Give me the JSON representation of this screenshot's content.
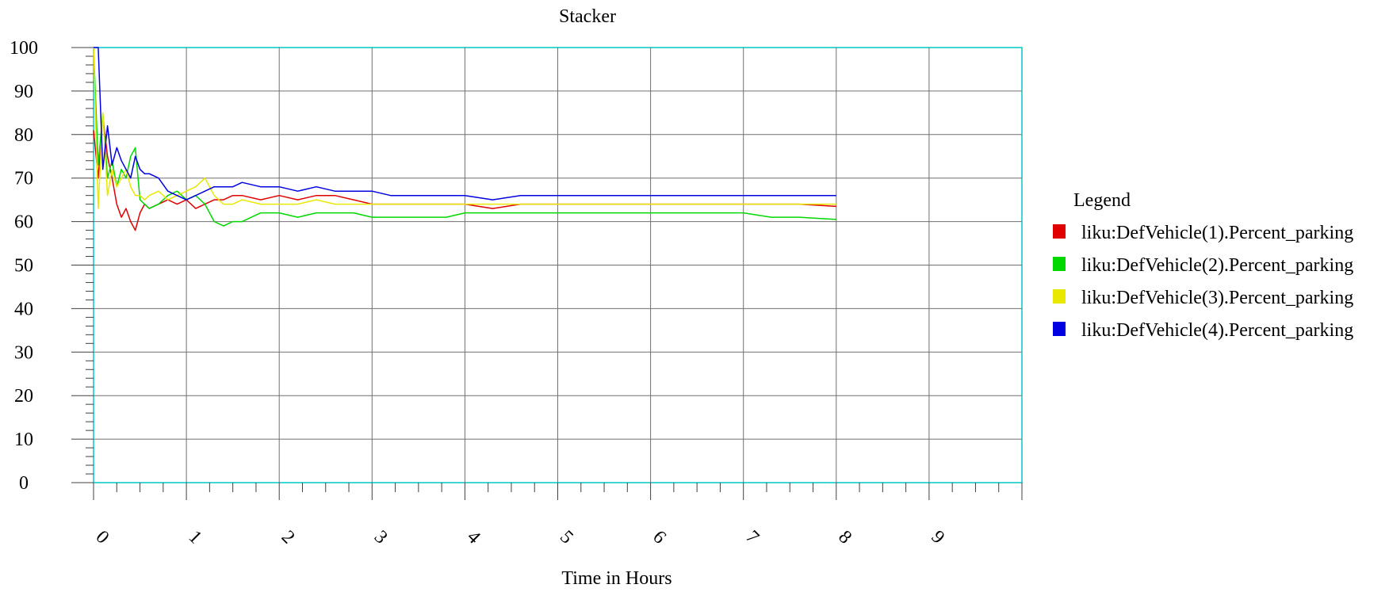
{
  "chart_data": {
    "type": "line",
    "title": "Stacker",
    "xlabel": "Time in Hours",
    "ylabel": "",
    "xlim": [
      0,
      10
    ],
    "ylim": [
      0,
      100
    ],
    "xticks": [
      "0",
      "1",
      "2",
      "3",
      "4",
      "5",
      "6",
      "7",
      "8",
      "9"
    ],
    "yticks": [
      "0",
      "10",
      "20",
      "30",
      "40",
      "50",
      "60",
      "70",
      "80",
      "90",
      "100"
    ],
    "grid": true,
    "legend_title": "Legend",
    "legend_position": "right",
    "series": [
      {
        "name": "liku:DefVehicle(1).Percent_parking",
        "color": "#e00000",
        "x": [
          0.0,
          0.05,
          0.1,
          0.15,
          0.2,
          0.25,
          0.3,
          0.35,
          0.4,
          0.45,
          0.5,
          0.55,
          0.6,
          0.7,
          0.8,
          0.9,
          1.0,
          1.1,
          1.2,
          1.3,
          1.4,
          1.5,
          1.6,
          1.8,
          2.0,
          2.2,
          2.4,
          2.6,
          2.8,
          3.0,
          3.2,
          3.5,
          3.8,
          4.0,
          4.3,
          4.6,
          5.0,
          5.3,
          5.6,
          6.0,
          6.3,
          6.6,
          7.0,
          7.3,
          7.6,
          8.0
        ],
        "y": [
          81,
          70,
          84,
          75,
          70,
          64,
          61,
          63,
          60,
          58,
          62,
          64,
          63,
          64,
          65,
          64,
          65,
          63,
          64,
          65,
          65,
          66,
          66,
          65,
          66,
          65,
          66,
          66,
          65,
          64,
          64,
          64,
          64,
          64,
          63,
          64,
          64,
          64,
          64,
          64,
          64,
          64,
          64,
          64,
          64,
          63.5
        ]
      },
      {
        "name": "liku:DefVehicle(2).Percent_parking",
        "color": "#00d800",
        "x": [
          0.0,
          0.05,
          0.1,
          0.15,
          0.2,
          0.25,
          0.3,
          0.35,
          0.4,
          0.45,
          0.5,
          0.55,
          0.6,
          0.7,
          0.8,
          0.9,
          1.0,
          1.1,
          1.2,
          1.3,
          1.4,
          1.5,
          1.6,
          1.8,
          2.0,
          2.2,
          2.4,
          2.6,
          2.8,
          3.0,
          3.2,
          3.5,
          3.8,
          4.0,
          4.3,
          4.6,
          5.0,
          5.3,
          5.6,
          6.0,
          6.3,
          6.6,
          7.0,
          7.3,
          7.6,
          8.0
        ],
        "y": [
          100,
          73,
          85,
          70,
          74,
          68,
          72,
          70,
          75,
          77,
          65,
          64,
          63,
          64,
          66,
          67,
          65,
          66,
          64,
          60,
          59,
          60,
          60,
          62,
          62,
          61,
          62,
          62,
          62,
          61,
          61,
          61,
          61,
          62,
          62,
          62,
          62,
          62,
          62,
          62,
          62,
          62,
          62,
          61,
          61,
          60.5
        ]
      },
      {
        "name": "liku:DefVehicle(3).Percent_parking",
        "color": "#e8e800",
        "x": [
          0.0,
          0.05,
          0.1,
          0.15,
          0.2,
          0.25,
          0.3,
          0.35,
          0.4,
          0.45,
          0.5,
          0.55,
          0.6,
          0.7,
          0.8,
          0.9,
          1.0,
          1.1,
          1.2,
          1.3,
          1.4,
          1.5,
          1.6,
          1.8,
          2.0,
          2.2,
          2.4,
          2.6,
          2.8,
          3.0,
          3.2,
          3.5,
          3.8,
          4.0,
          4.3,
          4.6,
          5.0,
          5.3,
          5.6,
          6.0,
          6.3,
          6.6,
          7.0,
          7.3,
          7.6,
          8.0
        ],
        "y": [
          100,
          63,
          85,
          66,
          72,
          68,
          70,
          72,
          68,
          66,
          66,
          65,
          66,
          67,
          65,
          66,
          67,
          68,
          70,
          66,
          64,
          64,
          65,
          64,
          64,
          64,
          65,
          64,
          64,
          64,
          64,
          64,
          64,
          64,
          64,
          64,
          64,
          64,
          64,
          64,
          64,
          64,
          64,
          64,
          64,
          64
        ]
      },
      {
        "name": "liku:DefVehicle(4).Percent_parking",
        "color": "#0000e0",
        "x": [
          0.0,
          0.05,
          0.1,
          0.15,
          0.2,
          0.25,
          0.3,
          0.35,
          0.4,
          0.45,
          0.5,
          0.55,
          0.6,
          0.7,
          0.8,
          0.9,
          1.0,
          1.1,
          1.2,
          1.3,
          1.4,
          1.5,
          1.6,
          1.8,
          2.0,
          2.2,
          2.4,
          2.6,
          2.8,
          3.0,
          3.2,
          3.5,
          3.8,
          4.0,
          4.3,
          4.6,
          5.0,
          5.3,
          5.6,
          6.0,
          6.3,
          6.6,
          7.0,
          7.3,
          7.6,
          8.0
        ],
        "y": [
          100,
          100,
          72,
          82,
          73,
          77,
          74,
          72,
          70,
          75,
          72,
          71,
          71,
          70,
          67,
          66,
          65,
          66,
          67,
          68,
          68,
          68,
          69,
          68,
          68,
          67,
          68,
          67,
          67,
          67,
          66,
          66,
          66,
          66,
          65,
          66,
          66,
          66,
          66,
          66,
          66,
          66,
          66,
          66,
          66,
          66
        ]
      }
    ]
  }
}
